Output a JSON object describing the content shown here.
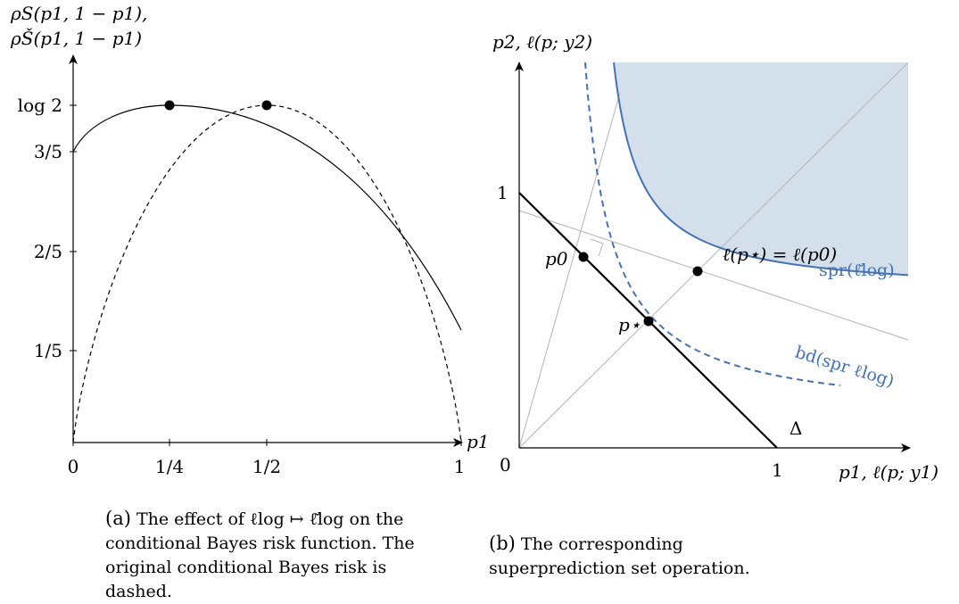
{
  "figure_a": {
    "y_axis_label_line1": "ρS(p1, 1 − p1),",
    "y_axis_label_line2": "ρŠ(p1, 1 − p1)",
    "x_axis_label": "p1",
    "y_ticks": [
      "log 2",
      "3/5",
      "2/5",
      "1/5"
    ],
    "x_ticks": [
      "0",
      "1/4",
      "1/2",
      "1"
    ],
    "caption_label": "(a)",
    "caption_text": "The effect of ℓlog ↦ ℓ̌log on the conditional Bayes risk function. The original conditional Bayes risk is dashed."
  },
  "figure_b": {
    "y_axis_label": "p2, ℓ(p; y2)",
    "x_axis_label": "p1, ℓ(p; y1)",
    "y_tick": "1",
    "x_tick": "1",
    "origin": "0",
    "point_p0": "p0",
    "point_pstar": "p⋆",
    "equality_label": "ℓ(p⋆) = ℓ(p0)",
    "spr_label": "spr(ℓ̌log)",
    "bd_label": "bd(spr ℓlog)",
    "simplex_label": "Δ",
    "caption_label": "(b)",
    "caption_text": "The corresponding superprediction set operation."
  },
  "colors": {
    "blue": "#4472b4",
    "shade": "#d4dfec",
    "gray": "#b4b4b4"
  }
}
